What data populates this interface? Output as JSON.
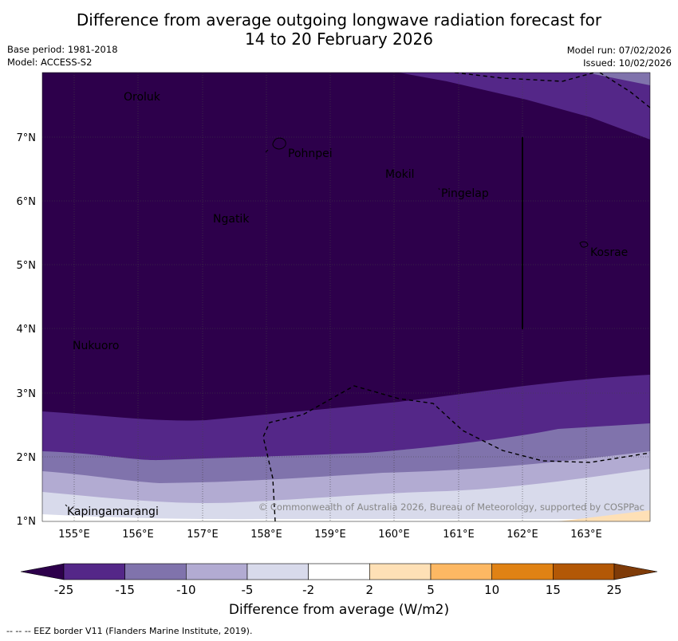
{
  "title_line1": "Difference from average outgoing longwave radiation forecast for",
  "title_line2": "14 to 20 February 2026",
  "base_period": "Base period: 1981-2018",
  "model": "Model: ACCESS-S2",
  "model_run": "Model run: 07/02/2026",
  "issued": "Issued: 10/02/2026",
  "copyright": "© Commonwealth of Australia 2026, Bureau of Meteorology, supported by COSPPac",
  "lat_labels": [
    "7°N",
    "6°N",
    "5°N",
    "4°N",
    "3°N",
    "2°N",
    "1°N"
  ],
  "lon_labels": [
    "155°E",
    "156°E",
    "157°E",
    "158°E",
    "159°E",
    "160°E",
    "161°E",
    "162°E",
    "163°E"
  ],
  "places": {
    "oroluk": "Oroluk",
    "pohnpei": "Pohnpei",
    "mokil": "Mokil",
    "pingelap": "Pingelap",
    "ngatik": "Ngatik",
    "kosrae": "Kosrae",
    "nukuoro": "Nukuoro",
    "kapingamarangi": "Kapingamarangi"
  },
  "colorbar": {
    "ticks": [
      "-25",
      "-15",
      "-10",
      "-5",
      "-2",
      "2",
      "5",
      "10",
      "15",
      "25"
    ],
    "colors": [
      "#2d004b",
      "#542788",
      "#8073ac",
      "#b2abd2",
      "#d8daeb",
      "#ffffff",
      "#fee0b6",
      "#fdb863",
      "#e08214",
      "#b35806",
      "#7f3b08"
    ],
    "label": "Difference from average (W/m2)"
  },
  "footnote": "--  --  -- EEZ border V11 (Flanders Marine Institute, 2019)."
}
